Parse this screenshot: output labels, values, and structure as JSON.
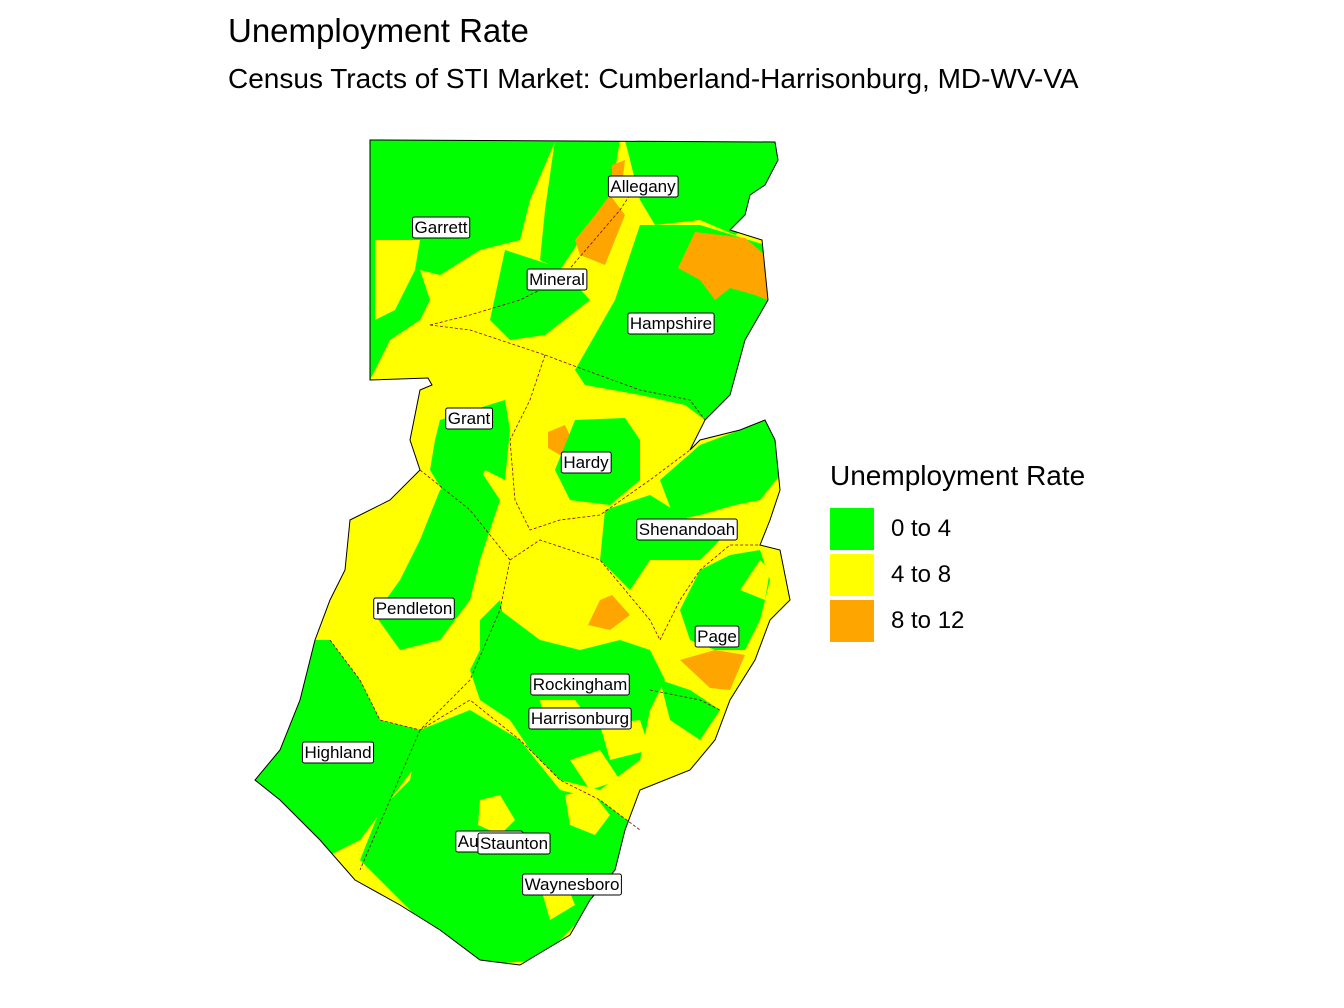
{
  "title": "Unemployment Rate",
  "subtitle": "Census Tracts of STI Market: Cumberland-Harrisonburg, MD-WV-VA",
  "legend": {
    "title": "Unemployment Rate",
    "items": [
      {
        "label": "0 to 4",
        "color": "#00ff00"
      },
      {
        "label": "4 to 8",
        "color": "#ffff00"
      },
      {
        "label": "8 to 12",
        "color": "#ffa500"
      }
    ]
  },
  "counties": [
    {
      "name": "Allegany"
    },
    {
      "name": "Garrett"
    },
    {
      "name": "Mineral"
    },
    {
      "name": "Hampshire"
    },
    {
      "name": "Grant"
    },
    {
      "name": "Hardy"
    },
    {
      "name": "Shenandoah"
    },
    {
      "name": "Pendleton"
    },
    {
      "name": "Page"
    },
    {
      "name": "Rockingham"
    },
    {
      "name": "Harrisonburg"
    },
    {
      "name": "Highland"
    },
    {
      "name": "Augusta"
    },
    {
      "name": "Staunton"
    },
    {
      "name": "Waynesboro"
    }
  ]
}
